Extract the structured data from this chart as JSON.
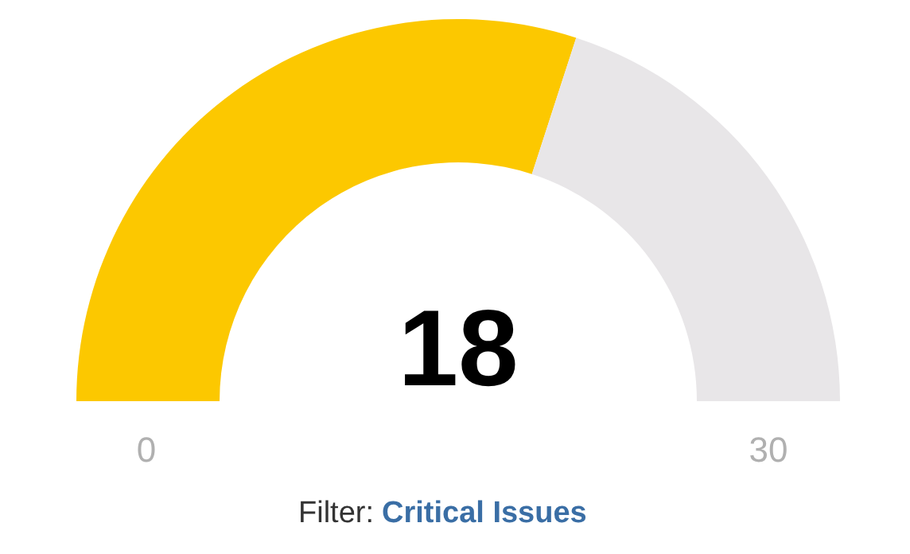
{
  "chart_data": {
    "type": "donut",
    "categories": [
      null,
      null
    ],
    "values": [
      18,
      12
    ],
    "colors": [
      "#fcc800",
      "#e8e6e8"
    ],
    "value_labels": [
      "18",
      null
    ],
    "annotations": [
      "0",
      "30",
      "Filter:",
      "Critical Issues"
    ]
  }
}
